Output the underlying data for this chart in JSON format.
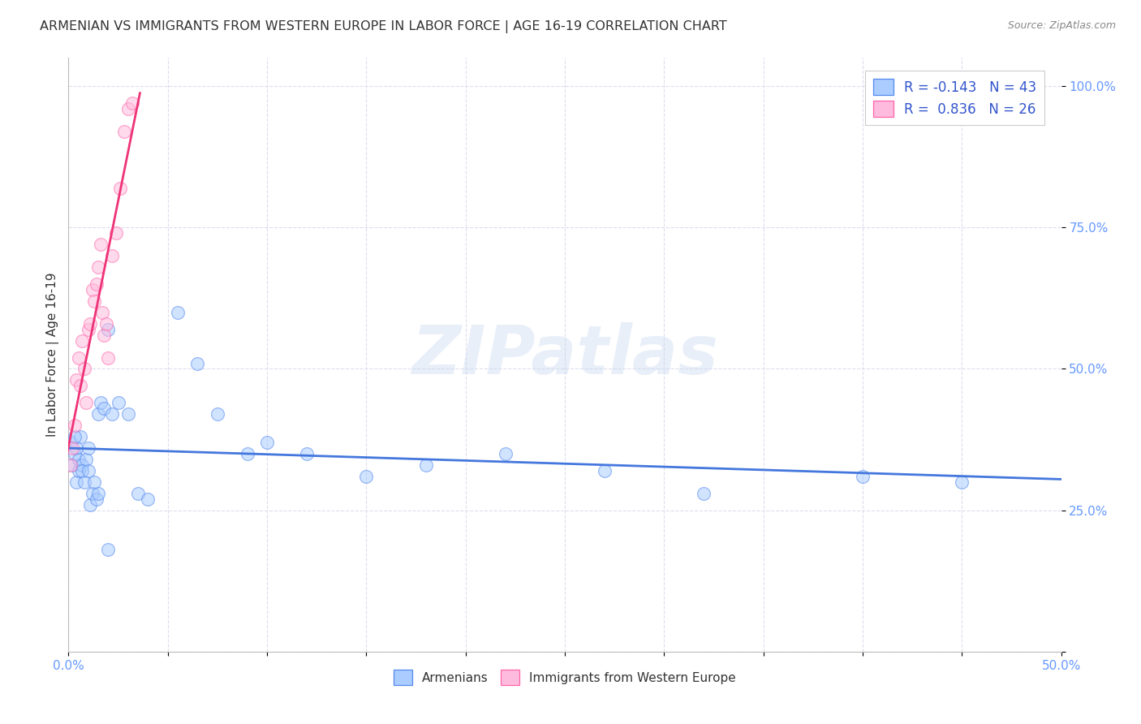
{
  "title": "ARMENIAN VS IMMIGRANTS FROM WESTERN EUROPE IN LABOR FORCE | AGE 16-19 CORRELATION CHART",
  "source": "Source: ZipAtlas.com",
  "ylabel": "In Labor Force | Age 16-19",
  "watermark": "ZIPatlas",
  "xmin": 0.0,
  "xmax": 0.5,
  "ymin": 0.0,
  "ymax": 1.05,
  "yticks": [
    0.0,
    0.25,
    0.5,
    0.75,
    1.0
  ],
  "ytick_labels": [
    "",
    "25.0%",
    "50.0%",
    "75.0%",
    "100.0%"
  ],
  "xtick_labels_map": {
    "0.0": "0.0%",
    "0.5": "50.0%"
  },
  "legend_label1": "R = -0.143   N = 43",
  "legend_label2": "R =  0.836   N = 26",
  "color_armenian_fill": "#aaccff",
  "color_armenian_edge": "#5588ee",
  "color_western_fill": "#ffbbdd",
  "color_western_edge": "#ff66aa",
  "color_line_armenian": "#4477dd",
  "color_line_western": "#ee3377",
  "armenian_x": [
    0.001,
    0.002,
    0.003,
    0.004,
    0.004,
    0.005,
    0.005,
    0.006,
    0.007,
    0.008,
    0.009,
    0.01,
    0.011,
    0.012,
    0.013,
    0.014,
    0.015,
    0.016,
    0.018,
    0.02,
    0.022,
    0.025,
    0.03,
    0.035,
    0.04,
    0.055,
    0.065,
    0.075,
    0.09,
    0.1,
    0.12,
    0.15,
    0.18,
    0.22,
    0.27,
    0.32,
    0.4,
    0.45,
    0.003,
    0.007,
    0.01,
    0.015,
    0.02
  ],
  "armenian_y": [
    0.37,
    0.33,
    0.35,
    0.36,
    0.3,
    0.34,
    0.32,
    0.38,
    0.33,
    0.3,
    0.34,
    0.36,
    0.26,
    0.28,
    0.3,
    0.27,
    0.42,
    0.44,
    0.43,
    0.57,
    0.42,
    0.44,
    0.42,
    0.28,
    0.27,
    0.6,
    0.51,
    0.42,
    0.35,
    0.37,
    0.35,
    0.31,
    0.33,
    0.35,
    0.32,
    0.28,
    0.31,
    0.3,
    0.38,
    0.32,
    0.32,
    0.28,
    0.18
  ],
  "western_x": [
    0.001,
    0.002,
    0.003,
    0.004,
    0.005,
    0.006,
    0.007,
    0.008,
    0.009,
    0.01,
    0.011,
    0.012,
    0.013,
    0.014,
    0.015,
    0.016,
    0.017,
    0.018,
    0.019,
    0.02,
    0.022,
    0.024,
    0.026,
    0.028,
    0.03,
    0.032
  ],
  "western_y": [
    0.33,
    0.36,
    0.4,
    0.48,
    0.52,
    0.47,
    0.55,
    0.5,
    0.44,
    0.57,
    0.58,
    0.64,
    0.62,
    0.65,
    0.68,
    0.72,
    0.6,
    0.56,
    0.58,
    0.52,
    0.7,
    0.74,
    0.82,
    0.92,
    0.96,
    0.97
  ],
  "background_color": "#ffffff",
  "grid_color": "#ddddee",
  "title_color": "#333333",
  "axis_label_color": "#333333",
  "tick_color": "#6699ff",
  "title_fontsize": 11.5,
  "ylabel_fontsize": 11,
  "tick_fontsize": 11,
  "legend_fontsize": 12,
  "watermark_color": "#c8d8f0",
  "watermark_alpha": 0.4,
  "marker_size": 130,
  "marker_alpha": 0.55,
  "line_width": 2.0
}
